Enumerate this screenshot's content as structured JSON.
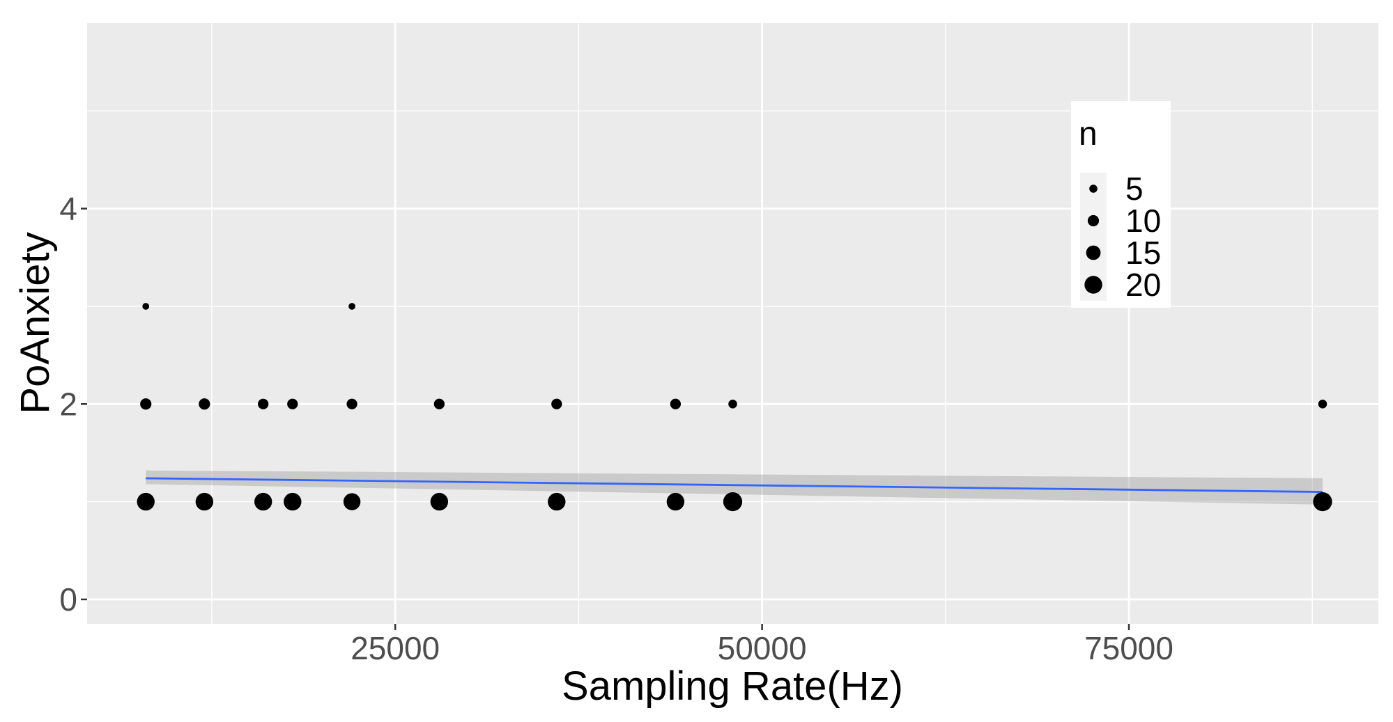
{
  "chart_data": {
    "type": "scatter",
    "xlabel": "Sampling Rate(Hz)",
    "ylabel": "PoAnxiety",
    "xlim": [
      4000,
      92000
    ],
    "ylim": [
      -0.25,
      5.9
    ],
    "x_ticks": [
      25000,
      50000,
      75000
    ],
    "x_tick_labels": [
      "25000",
      "50000",
      "75000"
    ],
    "y_ticks": [
      0,
      2,
      4
    ],
    "y_tick_labels": [
      "0",
      "2",
      "4"
    ],
    "grid": true,
    "legend": {
      "title": "n",
      "position": "top-right",
      "entries": [
        {
          "label": "5",
          "size": 5
        },
        {
          "label": "10",
          "size": 10
        },
        {
          "label": "15",
          "size": 15
        },
        {
          "label": "20",
          "size": 20
        }
      ]
    },
    "points": [
      {
        "x": 8000,
        "y": 3,
        "n": 3
      },
      {
        "x": 8000,
        "y": 2,
        "n": 10
      },
      {
        "x": 8000,
        "y": 1,
        "n": 20
      },
      {
        "x": 11995,
        "y": 2,
        "n": 10
      },
      {
        "x": 11995,
        "y": 1,
        "n": 20
      },
      {
        "x": 16000,
        "y": 2,
        "n": 9
      },
      {
        "x": 16000,
        "y": 1,
        "n": 20
      },
      {
        "x": 18000,
        "y": 2,
        "n": 9
      },
      {
        "x": 18000,
        "y": 1,
        "n": 20
      },
      {
        "x": 22050,
        "y": 3,
        "n": 3
      },
      {
        "x": 22050,
        "y": 2,
        "n": 9
      },
      {
        "x": 22050,
        "y": 1,
        "n": 19
      },
      {
        "x": 28000,
        "y": 2,
        "n": 9
      },
      {
        "x": 28000,
        "y": 1,
        "n": 20
      },
      {
        "x": 36000,
        "y": 2,
        "n": 9
      },
      {
        "x": 36000,
        "y": 1,
        "n": 20
      },
      {
        "x": 44100,
        "y": 2,
        "n": 9
      },
      {
        "x": 44100,
        "y": 1,
        "n": 20
      },
      {
        "x": 48000,
        "y": 2,
        "n": 6
      },
      {
        "x": 48000,
        "y": 1,
        "n": 22
      },
      {
        "x": 88200,
        "y": 2,
        "n": 6
      },
      {
        "x": 88200,
        "y": 1,
        "n": 22
      }
    ],
    "trend_line": {
      "method": "lm",
      "color": "#3366FF",
      "x": [
        8000,
        88200
      ],
      "y": [
        1.24,
        1.1
      ],
      "ci_lower": [
        1.18,
        0.97
      ],
      "ci_upper": [
        1.32,
        1.24
      ],
      "ci_color": "#999999"
    },
    "panel_color": "#EBEBEB",
    "point_color": "#000000"
  }
}
